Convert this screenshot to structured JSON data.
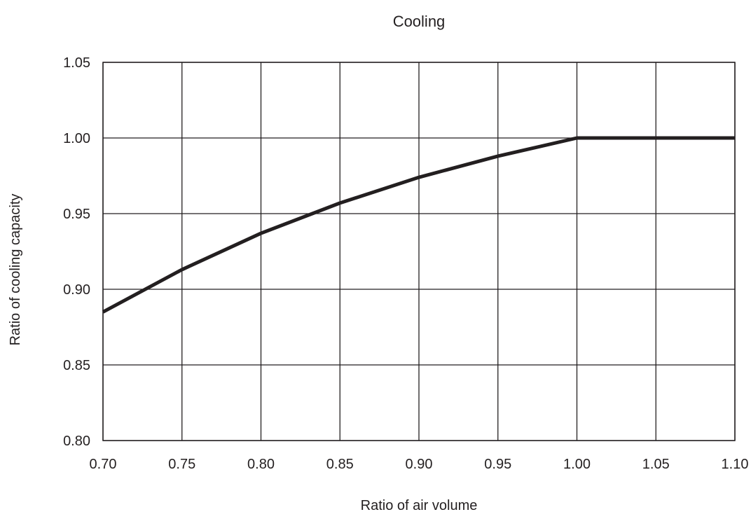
{
  "chart_data": {
    "type": "line",
    "title": "Cooling",
    "xlabel": "Ratio of air volume",
    "ylabel": "Ratio of cooling capacity",
    "xlim": [
      0.7,
      1.1
    ],
    "ylim": [
      0.8,
      1.05
    ],
    "x_ticks": [
      "0.70",
      "0.75",
      "0.80",
      "0.85",
      "0.90",
      "0.95",
      "1.00",
      "1.05",
      "1.10"
    ],
    "y_ticks": [
      "0.80",
      "0.85",
      "0.90",
      "0.95",
      "1.00",
      "1.05"
    ],
    "grid": true,
    "legend": false,
    "line_color": "#231f20",
    "series": [
      {
        "x": [
          0.7,
          0.75,
          0.8,
          0.85,
          0.9,
          0.95,
          1.0,
          1.05,
          1.1
        ],
        "y": [
          0.885,
          0.913,
          0.937,
          0.957,
          0.974,
          0.988,
          1.0,
          1.0,
          1.0
        ]
      }
    ]
  }
}
